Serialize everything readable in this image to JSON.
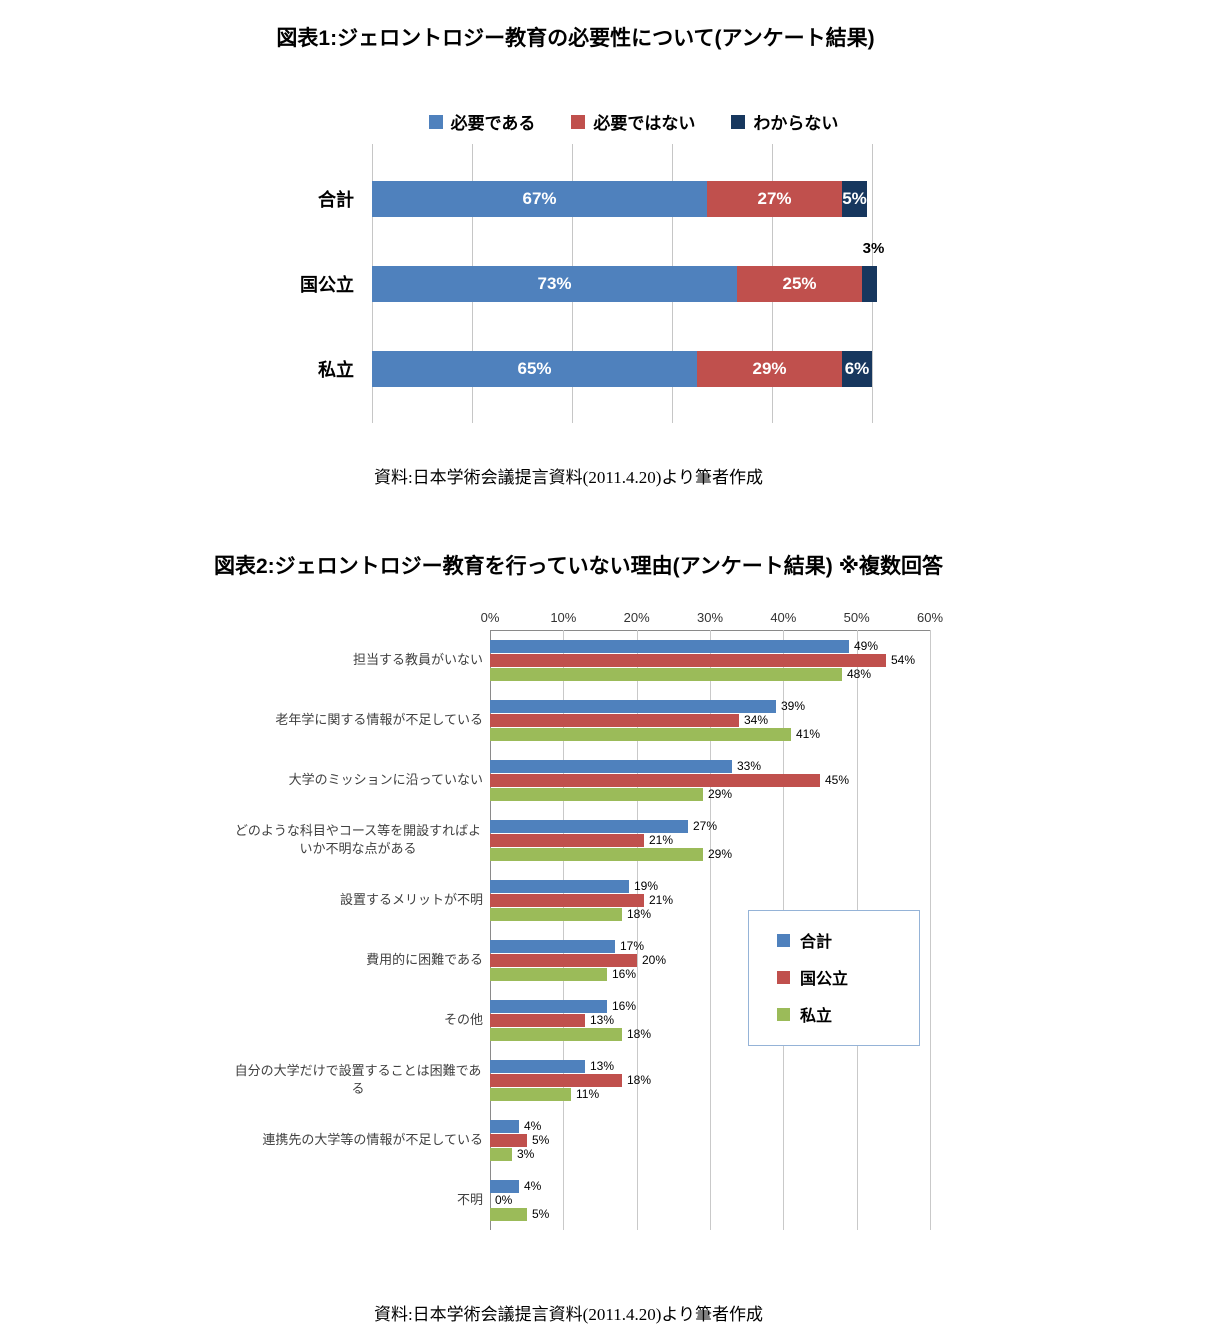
{
  "chart_data": [
    {
      "type": "bar",
      "orientation": "horizontal-stacked",
      "title": "図表1:ジェロントロジー教育の必要性について(アンケート結果)",
      "source": "資料:日本学術会議提言資料(2011.4.20)より筆者作成",
      "categories": [
        "合計",
        "国公立",
        "私立"
      ],
      "series": [
        {
          "name": "必要である",
          "color": "#4F81BD",
          "values": [
            67,
            73,
            65
          ]
        },
        {
          "name": "必要ではない",
          "color": "#C0504D",
          "values": [
            27,
            25,
            29
          ]
        },
        {
          "name": "わからない",
          "color": "#17375E",
          "values": [
            5,
            3,
            6
          ]
        }
      ],
      "xlim": [
        0,
        100
      ],
      "value_suffix": "%",
      "legend_position": "top",
      "grid": true
    },
    {
      "type": "bar",
      "orientation": "horizontal-grouped",
      "title": "図表2:ジェロントロジー教育を行っていない理由(アンケート結果) ※複数回答",
      "source": "資料:日本学術会議提言資料(2011.4.20)より筆者作成",
      "categories": [
        "担当する教員がいない",
        "老年学に関する情報が不足している",
        "大学のミッションに沿っていない",
        "どのような科目やコース等を開設すればよいか不明な点がある",
        "設置するメリットが不明",
        "費用的に困難である",
        "その他",
        "自分の大学だけで設置することは困難である",
        "連携先の大学等の情報が不足している",
        "不明"
      ],
      "series": [
        {
          "name": "合計",
          "color": "#4F81BD",
          "values": [
            49,
            39,
            33,
            27,
            19,
            17,
            16,
            13,
            4,
            4
          ]
        },
        {
          "name": "国公立",
          "color": "#C0504D",
          "values": [
            54,
            34,
            45,
            21,
            21,
            20,
            13,
            18,
            5,
            0
          ]
        },
        {
          "name": "私立",
          "color": "#9BBB59",
          "values": [
            48,
            41,
            29,
            29,
            18,
            16,
            18,
            11,
            3,
            5
          ]
        }
      ],
      "xlim": [
        0,
        60
      ],
      "x_ticks": [
        "0%",
        "10%",
        "20%",
        "30%",
        "40%",
        "50%",
        "60%"
      ],
      "value_suffix": "%",
      "legend_position": "inside-right",
      "grid": true
    }
  ]
}
